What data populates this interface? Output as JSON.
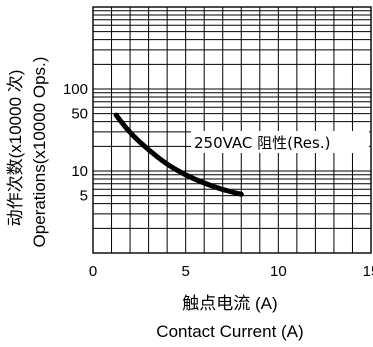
{
  "chart_data": {
    "type": "line",
    "title": "",
    "xlabel_cn": "触点电流 (A)",
    "xlabel_en": "Contact Current (A)",
    "ylabel_cn": "动作次数(x10000 次)",
    "ylabel_en": "Operations(x10000 Ops.)",
    "xlim": [
      0,
      15
    ],
    "ylim": [
      1,
      1000
    ],
    "y_scale": "log",
    "grid": true,
    "x_ticks": [
      0,
      5,
      10,
      15
    ],
    "x_tick_labels": [
      "0",
      "5",
      "10",
      "15"
    ],
    "y_tick_values": [
      5,
      10,
      50,
      100
    ],
    "y_tick_labels": [
      "5",
      "10",
      "50",
      "100"
    ],
    "annotation": "250VAC 阻性(Res.)",
    "series": [
      {
        "x": [
          1.25,
          2,
          3,
          4,
          5,
          6,
          7,
          8
        ],
        "y": [
          48,
          29,
          18,
          12,
          8.9,
          7.1,
          5.9,
          5.2
        ]
      }
    ]
  }
}
